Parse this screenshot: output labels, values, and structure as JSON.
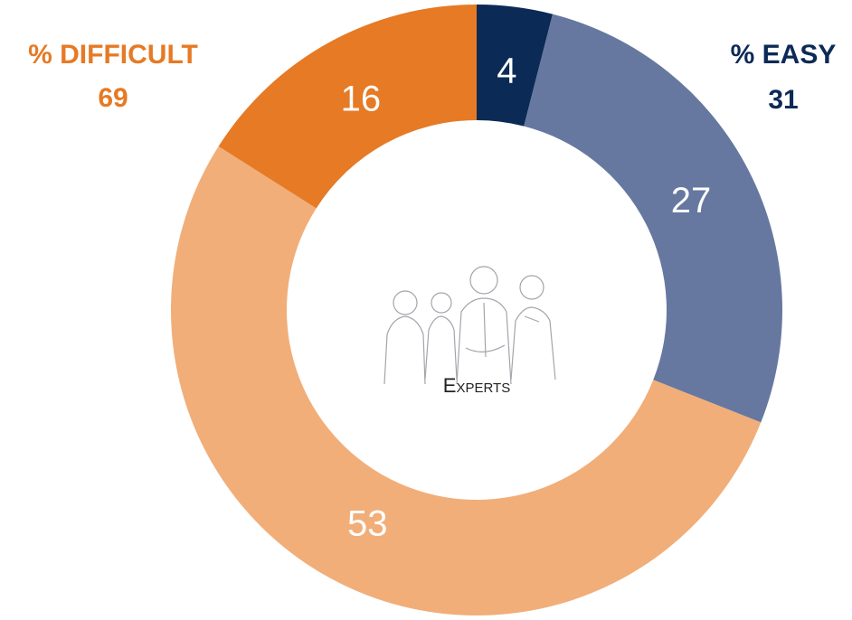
{
  "chart_data": {
    "type": "donut",
    "categories": [
      "4",
      "27",
      "53",
      "16"
    ],
    "values": [
      4,
      27,
      53,
      16
    ],
    "colors": [
      "#0c2a56",
      "#6678a0",
      "#f1ae79",
      "#e67a25"
    ],
    "center_label": "Experts",
    "annotations": [
      {
        "label": "% DIFFICULT",
        "value": 69,
        "color": "#e67a25"
      },
      {
        "label": "% EASY",
        "value": 31,
        "color": "#0c2a56"
      }
    ]
  }
}
